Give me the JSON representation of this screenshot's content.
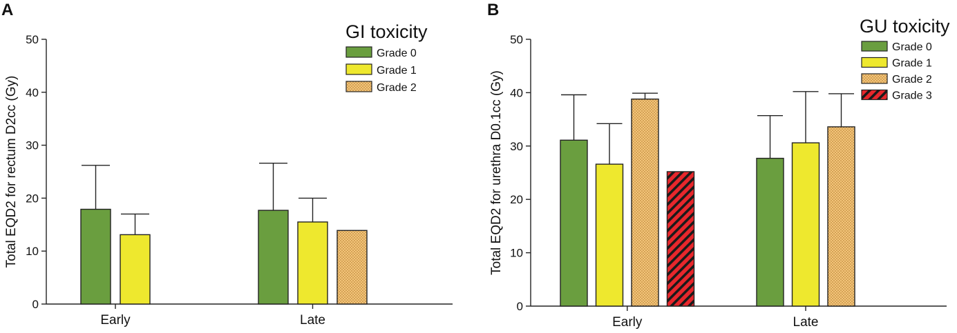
{
  "colors": {
    "grade0": "#6a9e3f",
    "grade1": "#eee82e",
    "grade2": "#f3c47a",
    "grade2_dots": "#b07a2a",
    "grade3": "#e8272c",
    "grade3_hatch": "#1a1a1a",
    "axis": "#222222"
  },
  "chart_data": [
    {
      "panel": "A",
      "type": "bar",
      "title": "",
      "xlabel": "",
      "ylabel": "Total EQD2 for rectum D2cc (Gy)",
      "ylim": [
        0,
        50
      ],
      "yticks": [
        0,
        10,
        20,
        30,
        40,
        50
      ],
      "grid": false,
      "categories": [
        "Early",
        "Late"
      ],
      "legend": {
        "title": "GI toxicity",
        "placement": "top-right"
      },
      "series": [
        {
          "name": "Grade 0",
          "key": "grade0",
          "values": [
            17.9,
            17.7
          ],
          "errors": [
            8.3,
            8.9
          ]
        },
        {
          "name": "Grade 1",
          "key": "grade1",
          "values": [
            13.1,
            15.5
          ],
          "errors": [
            3.9,
            4.5
          ]
        },
        {
          "name": "Grade 2",
          "key": "grade2",
          "values": [
            null,
            13.9
          ],
          "errors": [
            null,
            0
          ]
        }
      ]
    },
    {
      "panel": "B",
      "type": "bar",
      "title": "",
      "xlabel": "",
      "ylabel": "Total EQD2 for urethra D0.1cc (Gy)",
      "ylim": [
        0,
        50
      ],
      "yticks": [
        0,
        10,
        20,
        30,
        40,
        50
      ],
      "grid": false,
      "categories": [
        "Early",
        "Late"
      ],
      "legend": {
        "title": "GU toxicity",
        "placement": "top-right"
      },
      "series": [
        {
          "name": "Grade 0",
          "key": "grade0",
          "values": [
            31.1,
            27.7
          ],
          "errors": [
            8.5,
            8.0
          ]
        },
        {
          "name": "Grade 1",
          "key": "grade1",
          "values": [
            26.6,
            30.6
          ],
          "errors": [
            7.6,
            9.6
          ]
        },
        {
          "name": "Grade 2",
          "key": "grade2",
          "values": [
            38.8,
            33.6
          ],
          "errors": [
            1.1,
            6.2
          ]
        },
        {
          "name": "Grade 3",
          "key": "grade3",
          "values": [
            25.2,
            null
          ],
          "errors": [
            0,
            null
          ]
        }
      ]
    }
  ]
}
